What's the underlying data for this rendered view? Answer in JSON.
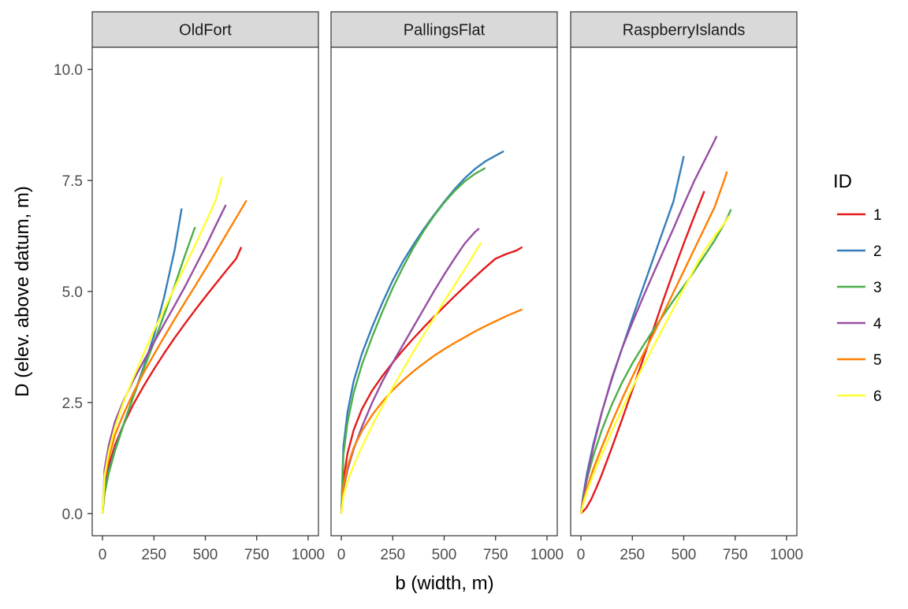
{
  "chart_data": {
    "type": "line",
    "facets": [
      {
        "name": "OldFort",
        "series": [
          {
            "name": "1",
            "x": [
              0,
              10,
              30,
              60,
              100,
              150,
              200,
              250,
              300,
              350,
              400,
              450,
              500,
              550,
              600,
              650,
              675
            ],
            "y": [
              0,
              0.6,
              1.08,
              1.53,
              1.98,
              2.46,
              2.87,
              3.25,
              3.61,
              3.95,
              4.27,
              4.58,
              4.88,
              5.17,
              5.46,
              5.74,
              6.0
            ]
          },
          {
            "name": "2",
            "x": [
              0,
              10,
              30,
              60,
              100,
              150,
              200,
              250,
              300,
              350,
              385
            ],
            "y": [
              0,
              0.5,
              0.96,
              1.44,
              1.98,
              2.64,
              3.3,
              4.0,
              4.88,
              5.92,
              6.87
            ]
          },
          {
            "name": "3",
            "x": [
              0,
              10,
              30,
              60,
              100,
              150,
              200,
              250,
              300,
              350,
              400,
              450
            ],
            "y": [
              0,
              0.45,
              0.9,
              1.4,
              1.96,
              2.63,
              3.25,
              3.85,
              4.48,
              5.12,
              5.8,
              6.45
            ]
          },
          {
            "name": "4",
            "x": [
              0,
              10,
              30,
              60,
              100,
              150,
              200,
              250,
              300,
              350,
              400,
              450,
              500,
              550,
              600
            ],
            "y": [
              0,
              1.0,
              1.53,
              2.06,
              2.52,
              3.0,
              3.43,
              3.85,
              4.27,
              4.68,
              5.1,
              5.55,
              6.0,
              6.48,
              6.95
            ]
          },
          {
            "name": "5",
            "x": [
              0,
              10,
              30,
              60,
              100,
              150,
              200,
              250,
              300,
              350,
              400,
              450,
              500,
              550,
              600,
              650,
              700
            ],
            "y": [
              0,
              0.75,
              1.24,
              1.76,
              2.22,
              2.72,
              3.17,
              3.58,
              3.98,
              4.37,
              4.75,
              5.12,
              5.5,
              5.88,
              6.27,
              6.66,
              7.05
            ]
          },
          {
            "name": "6",
            "x": [
              0,
              10,
              30,
              60,
              100,
              150,
              200,
              250,
              300,
              350,
              400,
              450,
              500,
              550,
              580
            ],
            "y": [
              0,
              0.85,
              1.38,
              1.93,
              2.48,
              3.06,
              3.6,
              4.12,
              4.6,
              5.08,
              5.56,
              6.04,
              6.54,
              7.05,
              7.58
            ]
          }
        ]
      },
      {
        "name": "PallingsFlat",
        "series": [
          {
            "name": "1",
            "x": [
              0,
              10,
              30,
              60,
              100,
              150,
              200,
              250,
              300,
              350,
              400,
              450,
              500,
              550,
              600,
              650,
              700,
              750,
              800,
              850,
              880
            ],
            "y": [
              0,
              0.75,
              1.35,
              1.88,
              2.35,
              2.77,
              3.1,
              3.4,
              3.68,
              3.94,
              4.19,
              4.43,
              4.66,
              4.89,
              5.11,
              5.33,
              5.54,
              5.74,
              5.84,
              5.92,
              6.0
            ]
          },
          {
            "name": "2",
            "x": [
              0,
              10,
              30,
              60,
              100,
              150,
              200,
              250,
              300,
              350,
              400,
              450,
              500,
              550,
              600,
              650,
              700,
              750,
              790
            ],
            "y": [
              0,
              1.5,
              2.28,
              2.98,
              3.6,
              4.2,
              4.75,
              5.25,
              5.68,
              6.05,
              6.4,
              6.72,
              7.02,
              7.3,
              7.55,
              7.76,
              7.93,
              8.06,
              8.16
            ]
          },
          {
            "name": "3",
            "x": [
              0,
              10,
              30,
              60,
              100,
              150,
              200,
              250,
              300,
              350,
              400,
              450,
              500,
              550,
              600,
              650,
              700
            ],
            "y": [
              0,
              1.32,
              2.05,
              2.72,
              3.35,
              3.98,
              4.55,
              5.08,
              5.55,
              5.98,
              6.36,
              6.7,
              7.0,
              7.26,
              7.48,
              7.65,
              7.78
            ]
          },
          {
            "name": "4",
            "x": [
              0,
              10,
              30,
              60,
              100,
              150,
              200,
              250,
              300,
              350,
              400,
              450,
              500,
              550,
              600,
              650,
              670
            ],
            "y": [
              0,
              0.55,
              0.98,
              1.45,
              1.95,
              2.5,
              2.98,
              3.4,
              3.8,
              4.2,
              4.6,
              5.0,
              5.38,
              5.74,
              6.08,
              6.34,
              6.42
            ]
          },
          {
            "name": "5",
            "x": [
              0,
              10,
              30,
              60,
              100,
              150,
              200,
              250,
              300,
              350,
              400,
              450,
              500,
              550,
              600,
              650,
              700,
              750,
              800,
              850,
              880
            ],
            "y": [
              0,
              0.62,
              1.06,
              1.48,
              1.86,
              2.22,
              2.52,
              2.78,
              3.0,
              3.2,
              3.38,
              3.55,
              3.7,
              3.84,
              3.97,
              4.1,
              4.22,
              4.33,
              4.44,
              4.54,
              4.6
            ]
          },
          {
            "name": "6",
            "x": [
              0,
              10,
              30,
              60,
              100,
              150,
              200,
              250,
              300,
              350,
              400,
              450,
              500,
              550,
              600,
              650,
              680
            ],
            "y": [
              0,
              0.38,
              0.72,
              1.08,
              1.5,
              1.98,
              2.42,
              2.84,
              3.24,
              3.64,
              4.02,
              4.4,
              4.78,
              5.14,
              5.5,
              5.88,
              6.1
            ]
          }
        ]
      },
      {
        "name": "RaspberryIslands",
        "series": [
          {
            "name": "1",
            "x": [
              0,
              25,
              50,
              75,
              100,
              150,
              200,
              250,
              300,
              350,
              400,
              450,
              500,
              550,
              600
            ],
            "y": [
              0,
              0.12,
              0.32,
              0.58,
              0.86,
              1.48,
              2.12,
              2.78,
              3.45,
              4.12,
              4.8,
              5.45,
              6.08,
              6.68,
              7.26
            ]
          },
          {
            "name": "2",
            "x": [
              0,
              10,
              30,
              60,
              100,
              150,
              200,
              250,
              300,
              350,
              400,
              450,
              500
            ],
            "y": [
              0,
              0.38,
              0.92,
              1.56,
              2.26,
              3.02,
              3.72,
              4.4,
              5.06,
              5.72,
              6.38,
              7.03,
              8.05
            ]
          },
          {
            "name": "3",
            "x": [
              0,
              10,
              30,
              60,
              100,
              150,
              200,
              250,
              300,
              350,
              400,
              450,
              500,
              550,
              600,
              650,
              700,
              730
            ],
            "y": [
              0,
              0.35,
              0.78,
              1.3,
              1.86,
              2.45,
              2.95,
              3.38,
              3.76,
              4.12,
              4.46,
              4.8,
              5.12,
              5.45,
              5.8,
              6.15,
              6.55,
              6.85
            ]
          },
          {
            "name": "4",
            "x": [
              0,
              10,
              30,
              60,
              100,
              150,
              200,
              250,
              300,
              350,
              400,
              450,
              500,
              550,
              600,
              650,
              660
            ],
            "y": [
              0,
              0.3,
              0.82,
              1.5,
              2.25,
              3.05,
              3.72,
              4.3,
              4.85,
              5.38,
              5.9,
              6.42,
              6.96,
              7.48,
              7.94,
              8.4,
              8.5
            ]
          },
          {
            "name": "5",
            "x": [
              0,
              10,
              30,
              60,
              100,
              150,
              200,
              250,
              300,
              350,
              400,
              450,
              500,
              550,
              600,
              650,
              700,
              710
            ],
            "y": [
              0,
              0.24,
              0.58,
              1.0,
              1.48,
              2.05,
              2.58,
              3.08,
              3.56,
              4.02,
              4.5,
              4.98,
              5.46,
              5.94,
              6.42,
              6.9,
              7.55,
              7.7
            ]
          },
          {
            "name": "6",
            "x": [
              0,
              10,
              30,
              60,
              100,
              150,
              200,
              250,
              300,
              350,
              400,
              450,
              500,
              550,
              600,
              650,
              700,
              720
            ],
            "y": [
              0,
              0.2,
              0.5,
              0.88,
              1.32,
              1.85,
              2.35,
              2.84,
              3.3,
              3.74,
              4.18,
              4.62,
              5.06,
              5.5,
              5.92,
              6.25,
              6.55,
              6.7
            ]
          }
        ]
      }
    ],
    "xlabel": "b (width, m)",
    "ylabel": "D (elev. above datum, m)",
    "xlim": [
      -50,
      1050
    ],
    "ylim": [
      -0.5,
      10.5
    ],
    "xticks": [
      0,
      250,
      500,
      750,
      1000
    ],
    "xtick_labels": [
      "0",
      "250",
      "500",
      "750",
      "1000"
    ],
    "yticks": [
      0,
      2.5,
      5,
      7.5,
      10
    ],
    "ytick_labels": [
      "0.0",
      "2.5",
      "5.0",
      "7.5",
      "10.0"
    ],
    "grid": false,
    "legend": {
      "title": "ID",
      "position": "right",
      "entries": [
        "1",
        "2",
        "3",
        "4",
        "5",
        "6"
      ]
    },
    "colors": {
      "1": "#e41a1c",
      "2": "#377eb8",
      "3": "#4daf4a",
      "4": "#984ea3",
      "5": "#ff7f00",
      "6": "#ffff33"
    },
    "strip_fill": "#d9d9d9",
    "panel_border": "#333333"
  }
}
